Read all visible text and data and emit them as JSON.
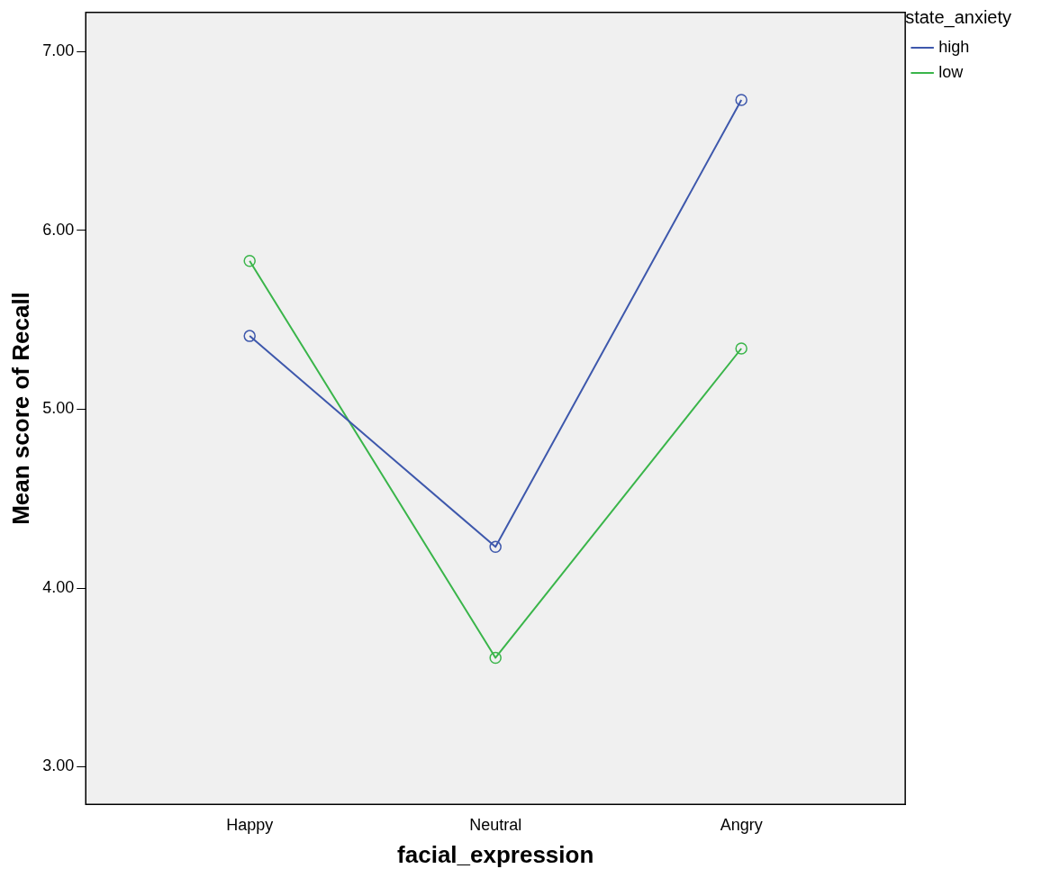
{
  "chart_data": {
    "type": "line",
    "xlabel": "facial_expression",
    "ylabel": "Mean score of Recall",
    "legend_title": "state_anxiety",
    "categories": [
      "Happy",
      "Neutral",
      "Angry"
    ],
    "series": [
      {
        "name": "high",
        "color": "#3e58ac",
        "values": [
          5.41,
          4.23,
          6.73
        ]
      },
      {
        "name": "low",
        "color": "#3ab54a",
        "values": [
          5.83,
          3.61,
          5.34
        ]
      }
    ],
    "ylim": [
      2.79,
      7.22
    ],
    "yticks": [
      {
        "value": 3,
        "label": "3.00"
      },
      {
        "value": 4,
        "label": "4.00"
      },
      {
        "value": 5,
        "label": "5.00"
      },
      {
        "value": 6,
        "label": "6.00"
      },
      {
        "value": 7,
        "label": "7.00"
      }
    ],
    "grid": false,
    "legend": "top right",
    "marker": "circle",
    "line_style": "solid"
  }
}
